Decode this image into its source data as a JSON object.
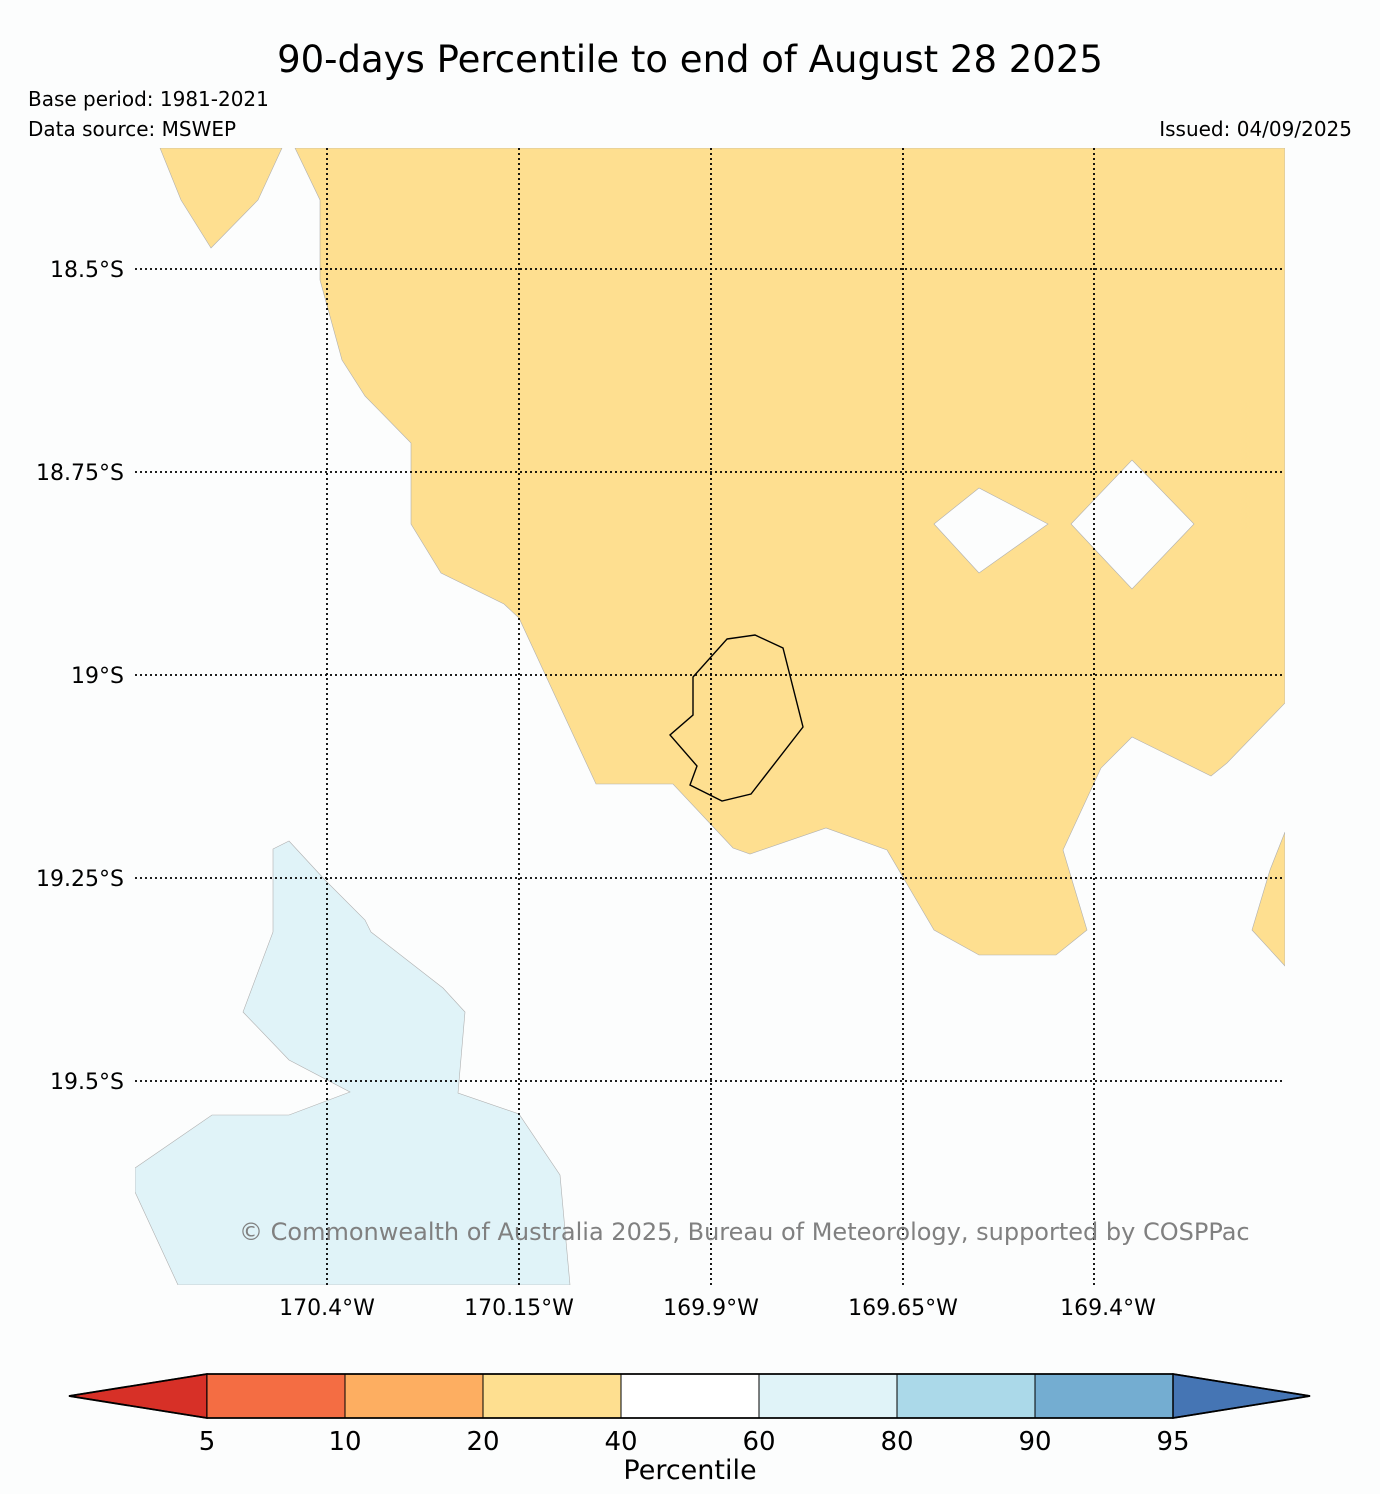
{
  "title": "90-days Percentile to end of August 28 2025",
  "base_period": "Base period: 1981-2021",
  "data_source": "Data source: MSWEP",
  "issued": "Issued: 04/09/2025",
  "copyright": "© Commonwealth of Australia 2025, Bureau of Meteorology, supported by COSPPac",
  "map": {
    "lat_labels": [
      "18.5°S",
      "18.75°S",
      "19°S",
      "19.25°S",
      "19.5°S"
    ],
    "lon_labels": [
      "170.4°W",
      "170.15°W",
      "169.9°W",
      "169.65°W",
      "169.4°W"
    ],
    "regions": [
      {
        "category": "20-40",
        "color": "#fedf90"
      },
      {
        "category": "60-80",
        "color": "#e0f3f8"
      }
    ],
    "gridlines": "dotted"
  },
  "colorbar": {
    "label": "Percentile",
    "ticks": [
      "5",
      "10",
      "20",
      "40",
      "60",
      "80",
      "90",
      "95"
    ],
    "colors": [
      "#d73027",
      "#f46d43",
      "#fdae61",
      "#fedf90",
      "#ffffff",
      "#e0f3f8",
      "#abd9e9",
      "#74add1",
      "#4575b4"
    ]
  }
}
